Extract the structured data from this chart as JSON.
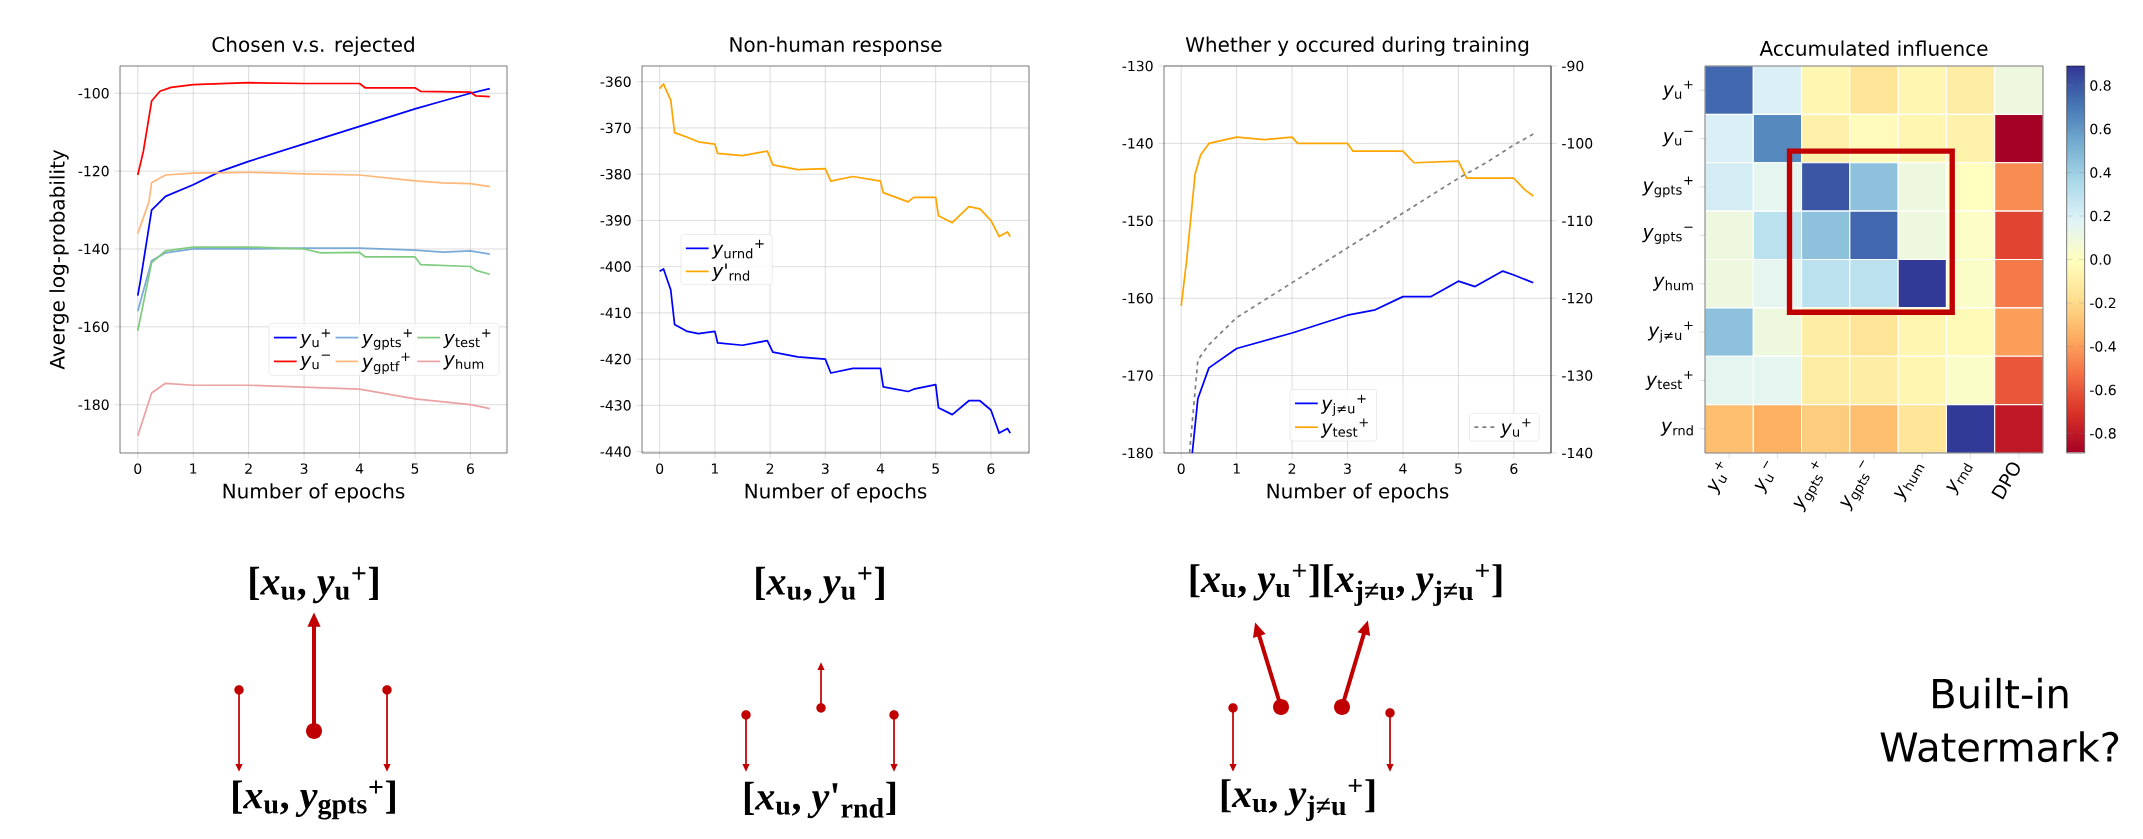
{
  "chart_data": [
    {
      "type": "line",
      "title": "Chosen v.s. rejected",
      "xlabel": "Number of epochs",
      "ylabel": "Averge log-probability",
      "xlim": [
        -0.32,
        6.66
      ],
      "ylim": [
        -192.4,
        -93
      ],
      "xticks": [
        0,
        1,
        2,
        3,
        4,
        5,
        6
      ],
      "yticks": [
        -180,
        -160,
        -140,
        -120,
        -100
      ],
      "grid": true,
      "legend": "bottom right",
      "series": [
        {
          "name": "*y*$_{u}$$^{+}$",
          "color": "#0000ff",
          "x": [
            0,
            0.05,
            0.25,
            0.5,
            1,
            1.5,
            2,
            3,
            4,
            5,
            5.5,
            6,
            6.35
          ],
          "values": [
            -152,
            -148,
            -130,
            -126.5,
            -123.5,
            -120,
            -117.5,
            -113,
            -108.5,
            -104,
            -102,
            -100,
            -98.8
          ]
        },
        {
          "name": "*y*$_{u}$$^{−}$",
          "color": "#ff0000",
          "x": [
            0,
            0.1,
            0.25,
            0.4,
            0.6,
            1,
            2,
            3,
            4,
            4.1,
            5,
            5.1,
            6,
            6.1,
            6.35
          ],
          "values": [
            -121,
            -115,
            -102,
            -99.5,
            -98.5,
            -97.8,
            -97.3,
            -97.5,
            -97.5,
            -98.6,
            -98.6,
            -99.5,
            -99.7,
            -100.7,
            -100.9
          ]
        },
        {
          "name": "*y*$_{gpts}$$^{+}$",
          "color": "#7aaad8",
          "x": [
            0,
            0.25,
            0.5,
            1,
            2,
            3,
            4,
            5,
            5.5,
            6,
            6.35
          ],
          "values": [
            -156,
            -143,
            -141,
            -140,
            -140,
            -139.8,
            -139.8,
            -140.3,
            -140.8,
            -140.5,
            -141.3
          ]
        },
        {
          "name": "*y*$_{gptf}$$^{+}$",
          "color": "#ffb77a",
          "x": [
            0,
            0.2,
            0.25,
            0.5,
            1,
            2,
            3,
            4,
            5,
            5.5,
            6,
            6.35
          ],
          "values": [
            -136,
            -128,
            -123,
            -121,
            -120.5,
            -120.3,
            -120.7,
            -121,
            -122.5,
            -123,
            -123.2,
            -124
          ]
        },
        {
          "name": "*y*$_{test}$$^{+}$",
          "color": "#7fcc7f",
          "x": [
            0,
            0.25,
            0.5,
            1,
            2,
            3,
            3.3,
            4,
            4.1,
            5,
            5.1,
            6,
            6.1,
            6.35
          ],
          "values": [
            -161,
            -143.5,
            -140.5,
            -139.5,
            -139.5,
            -140,
            -141,
            -140.9,
            -142,
            -142,
            -144,
            -144.5,
            -145.5,
            -146.5
          ]
        },
        {
          "name": "*y*$_{hum}$",
          "color": "#eca2a2",
          "x": [
            0,
            0.25,
            0.5,
            1,
            2,
            3,
            4,
            5,
            6,
            6.35
          ],
          "values": [
            -188,
            -177,
            -174.5,
            -175,
            -175,
            -175.5,
            -176,
            -178.5,
            -180,
            -181
          ]
        }
      ],
      "annotations": [
        "[*x*$_{u}$, *y*$_{u}$$^{+}$]",
        "[*x*$_{u}$, *y*$_{gpts}$$^{+}$]"
      ]
    },
    {
      "type": "line",
      "title": "Non-human response",
      "xlabel": "Number of epochs",
      "xlim": [
        -0.32,
        6.69
      ],
      "ylim": [
        -440.3,
        -356.6
      ],
      "xticks": [
        0,
        1,
        2,
        3,
        4,
        5,
        6
      ],
      "yticks": [
        -440,
        -430,
        -420,
        -410,
        -400,
        -390,
        -380,
        -370,
        -360
      ],
      "grid": true,
      "legend": "left",
      "series": [
        {
          "name": "*y*$_{urnd}$$^{+}$",
          "color": "#0000ff",
          "x": [
            0,
            0.07,
            0.2,
            0.27,
            0.5,
            0.7,
            1,
            1.05,
            1.5,
            1.95,
            2.05,
            2.5,
            3,
            3.1,
            3.5,
            4,
            4.05,
            4.5,
            4.6,
            5,
            5.05,
            5.3,
            5.6,
            5.8,
            6,
            6.15,
            6.3,
            6.35
          ],
          "values": [
            -401,
            -400.5,
            -405,
            -412.5,
            -414,
            -414.5,
            -414,
            -416.5,
            -417,
            -416,
            -418.5,
            -419.5,
            -420,
            -423,
            -422,
            -422,
            -426,
            -427,
            -426.5,
            -425.5,
            -430.5,
            -432,
            -429,
            -429,
            -431,
            -436,
            -435,
            -436
          ]
        },
        {
          "name": "*y*'$_{rnd}$",
          "color": "#ffa500",
          "x": [
            0,
            0.07,
            0.2,
            0.27,
            0.5,
            0.7,
            1,
            1.05,
            1.5,
            1.95,
            2.05,
            2.5,
            3,
            3.1,
            3.5,
            4,
            4.05,
            4.5,
            4.6,
            5,
            5.05,
            5.3,
            5.6,
            5.8,
            6,
            6.15,
            6.3,
            6.35
          ],
          "values": [
            -361.5,
            -360.5,
            -364,
            -371,
            -372,
            -373,
            -373.5,
            -375.5,
            -376,
            -375,
            -378,
            -379,
            -378.8,
            -381.5,
            -380.5,
            -381.5,
            -384,
            -386,
            -385,
            -385,
            -389,
            -390.5,
            -387,
            -387.5,
            -390,
            -393.5,
            -392.5,
            -393.5
          ]
        }
      ],
      "annotations": [
        "[*x*$_{u}$, *y*$_{u}$$^{+}$]",
        "[*x*$_{u}$, *y*'$_{rnd}$]"
      ]
    },
    {
      "type": "line",
      "title": "Whether y occured during training",
      "xlabel": "Number of epochs",
      "xlim": [
        -0.31,
        6.67
      ],
      "ylim": [
        -180,
        -130
      ],
      "y2lim": [
        -140,
        -90
      ],
      "xticks": [
        0,
        1,
        2,
        3,
        4,
        5,
        6
      ],
      "yticks": [
        -180,
        -170,
        -160,
        -150,
        -140,
        -130
      ],
      "y2ticks": [
        -140,
        -130,
        -120,
        -110,
        -100,
        -90
      ],
      "grid": true,
      "legend": "bottom right",
      "series": [
        {
          "name": "*y*$_{j≠u}$$^{+}$",
          "color": "#0000ff",
          "x": [
            0.2,
            0.3,
            0.5,
            1,
            2,
            3,
            3.5,
            4,
            4.5,
            5,
            5.3,
            5.8,
            6,
            6.35
          ],
          "values": [
            -180,
            -173,
            -169,
            -166.5,
            -164.5,
            -162.2,
            -161.5,
            -159.8,
            -159.8,
            -157.8,
            -158.5,
            -156.5,
            -157,
            -158
          ]
        },
        {
          "name": "*y*$_{test}$$^{+}$",
          "color": "#ffa500",
          "x": [
            0,
            0.1,
            0.25,
            0.35,
            0.5,
            1,
            1.5,
            2,
            2.1,
            3,
            3.1,
            4,
            4.2,
            5,
            5.15,
            6,
            6.2,
            6.35
          ],
          "values": [
            -161,
            -155,
            -144,
            -141.5,
            -140,
            -139.2,
            -139.5,
            -139.2,
            -140,
            -140,
            -141,
            -141,
            -142.5,
            -142.3,
            -144.5,
            -144.5,
            -146,
            -146.8
          ]
        },
        {
          "name": "*y*$_{u}$$^{+}$",
          "color": "#808080",
          "line_style": "dashed",
          "axis": "y2",
          "x": [
            0.15,
            0.3,
            0.5,
            1,
            2,
            3,
            4,
            5,
            5.5,
            6,
            6.35
          ],
          "values": [
            -140,
            -128,
            -126,
            -122.5,
            -118,
            -113.5,
            -109,
            -104.5,
            -102.5,
            -100.2,
            -98.8
          ]
        }
      ],
      "annotations": [
        "[*x*$_{u}$, *y*$_{u}$$^{+}$][*x*$_{j≠u}$, *y*$_{j≠u}$$^{+}$]",
        "[*x*$_{u}$, *y*$_{j≠u}$$^{+}$]"
      ]
    },
    {
      "type": "heatmap",
      "title": "Accumulated influence",
      "categories": [
        "*y*$_{u}$$^{+}$",
        "*y*$_{u}$$^{−}$",
        "*y*$_{gpts}$$^{+}$",
        "*y*$_{gpts}$$^{−}$",
        "*y*$_{hum}$",
        "*y*$_{rnd}$",
        "DPO"
      ],
      "y_categories": [
        "*y*$_{u}$$^{+}$",
        "*y*$_{u}$$^{−}$",
        "*y*$_{gpts}$$^{+}$",
        "*y*$_{gpts}$$^{−}$",
        "*y*$_{hum}$",
        "*y*$_{j≠u}$$^{+}$",
        "*y*$_{test}$$^{+}$",
        "*y*$_{rnd}$"
      ],
      "cells": [
        [
          0.75,
          0.2,
          -0.05,
          -0.15,
          -0.05,
          -0.1,
          0.1
        ],
        [
          0.2,
          0.65,
          -0.08,
          -0.02,
          -0.05,
          -0.07,
          -0.89
        ],
        [
          0.22,
          0.15,
          0.8,
          0.45,
          0.1,
          0.0,
          -0.45
        ],
        [
          0.1,
          0.3,
          0.45,
          0.75,
          0.1,
          0.02,
          -0.65
        ],
        [
          0.1,
          0.15,
          0.3,
          0.3,
          0.88,
          0.03,
          -0.5
        ],
        [
          0.45,
          0.1,
          -0.1,
          -0.15,
          -0.05,
          -0.03,
          -0.4
        ],
        [
          0.15,
          0.15,
          -0.1,
          -0.1,
          -0.05,
          0.03,
          -0.6
        ],
        [
          -0.3,
          -0.35,
          -0.25,
          -0.3,
          -0.15,
          0.88,
          -0.8
        ]
      ],
      "clim": [
        -0.89,
        0.89
      ],
      "cticks": [
        -0.8,
        -0.6,
        -0.4,
        -0.2,
        {
          "value": 0,
          "label": "0.0"
        },
        0.2,
        0.4,
        0.6,
        0.8
      ],
      "annotations": [
        "Built-in Watermark?"
      ]
    }
  ]
}
